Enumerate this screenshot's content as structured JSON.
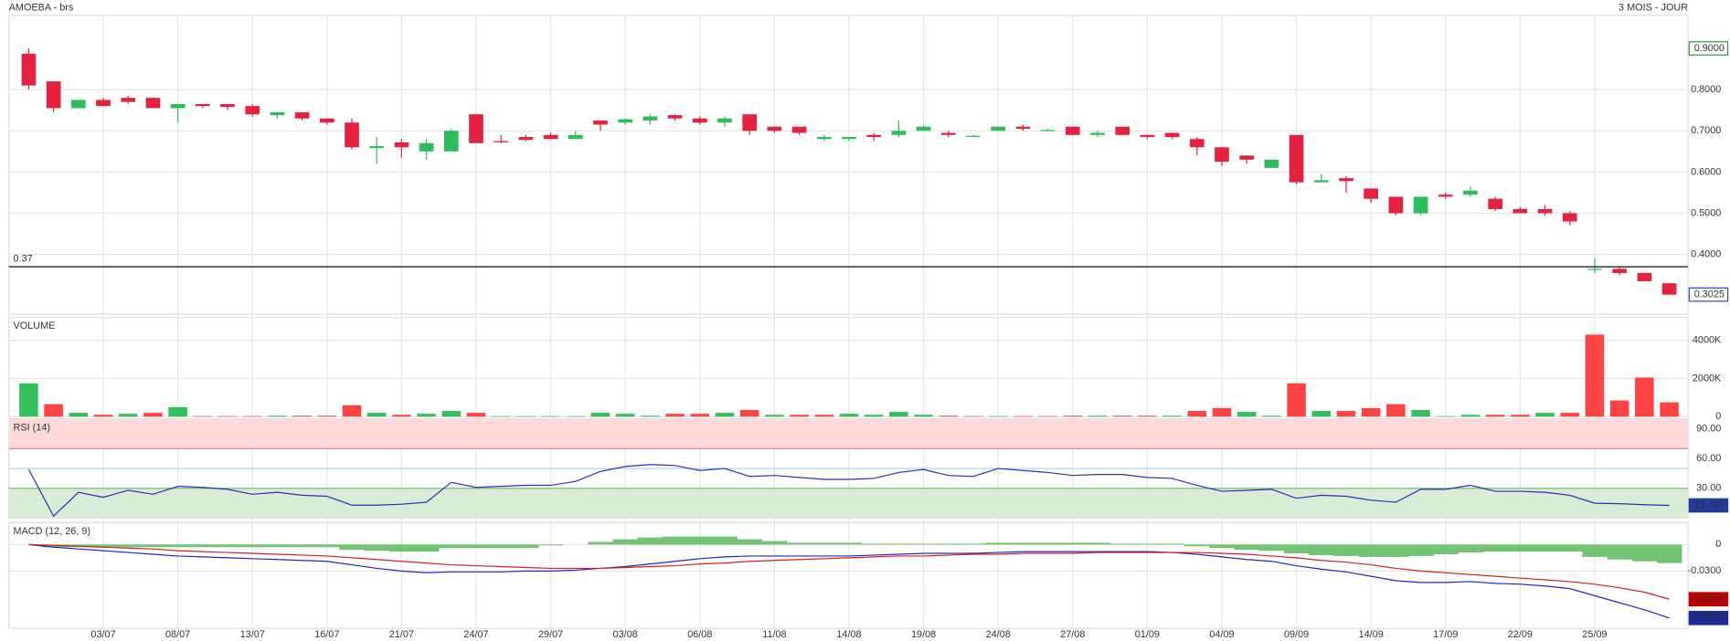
{
  "chart_data": [
    {
      "type": "candlestick",
      "title": "AMOEBA - brs",
      "subtitle": "3 MOIS - JOUR",
      "categories": [
        null,
        null,
        null,
        "03/07",
        null,
        null,
        "08/07",
        null,
        null,
        "13/07",
        null,
        null,
        "16/07",
        null,
        null,
        "21/07",
        null,
        null,
        "24/07",
        null,
        null,
        "29/07",
        null,
        null,
        "03/08",
        null,
        null,
        "06/08",
        null,
        null,
        "11/08",
        null,
        null,
        "14/08",
        null,
        null,
        "19/08",
        null,
        null,
        "24/08",
        null,
        null,
        "27/08",
        null,
        null,
        "01/09",
        null,
        null,
        "04/09",
        null,
        null,
        "09/09",
        null,
        null,
        "14/09",
        null,
        null,
        "17/09",
        null,
        null,
        "22/09",
        null,
        null,
        "25/09",
        null,
        null,
        null
      ],
      "open": [
        0.887,
        0.82,
        0.755,
        0.775,
        0.78,
        0.78,
        0.755,
        0.765,
        0.765,
        0.76,
        0.738,
        0.745,
        0.73,
        0.72,
        0.658,
        0.672,
        0.65,
        0.65,
        0.74,
        0.675,
        0.685,
        0.69,
        0.68,
        0.725,
        0.72,
        0.725,
        0.738,
        0.73,
        0.72,
        0.74,
        0.71,
        0.71,
        0.68,
        0.68,
        0.69,
        0.69,
        0.7,
        0.695,
        0.686,
        0.7,
        0.71,
        0.7,
        0.71,
        0.69,
        0.71,
        0.69,
        0.695,
        0.68,
        0.66,
        0.64,
        0.61,
        0.69,
        0.575,
        0.585,
        0.56,
        0.54,
        0.5,
        0.545,
        0.545,
        0.535,
        0.51,
        0.51,
        0.5,
        0.363,
        0.365,
        0.355,
        0.33
      ],
      "high": [
        0.9,
        0.82,
        0.775,
        0.78,
        0.785,
        0.78,
        0.765,
        0.765,
        0.765,
        0.765,
        0.745,
        0.745,
        0.73,
        0.73,
        0.685,
        0.68,
        0.68,
        0.705,
        0.74,
        0.69,
        0.69,
        0.695,
        0.7,
        0.725,
        0.73,
        0.74,
        0.74,
        0.735,
        0.735,
        0.74,
        0.71,
        0.71,
        0.69,
        0.685,
        0.695,
        0.725,
        0.715,
        0.7,
        0.69,
        0.71,
        0.715,
        0.705,
        0.71,
        0.7,
        0.71,
        0.69,
        0.695,
        0.685,
        0.66,
        0.64,
        0.63,
        0.69,
        0.595,
        0.59,
        0.56,
        0.54,
        0.54,
        0.55,
        0.565,
        0.54,
        0.515,
        0.52,
        0.505,
        0.39,
        0.37,
        0.355,
        0.33
      ],
      "low": [
        0.8,
        0.745,
        0.755,
        0.76,
        0.765,
        0.755,
        0.72,
        0.755,
        0.75,
        0.735,
        0.73,
        0.725,
        0.715,
        0.655,
        0.62,
        0.635,
        0.63,
        0.65,
        0.67,
        0.67,
        0.675,
        0.68,
        0.68,
        0.7,
        0.715,
        0.715,
        0.725,
        0.715,
        0.71,
        0.69,
        0.695,
        0.69,
        0.675,
        0.675,
        0.675,
        0.685,
        0.7,
        0.685,
        0.685,
        0.7,
        0.7,
        0.7,
        0.69,
        0.685,
        0.69,
        0.68,
        0.68,
        0.64,
        0.615,
        0.62,
        0.61,
        0.57,
        0.575,
        0.55,
        0.525,
        0.495,
        0.495,
        0.535,
        0.54,
        0.505,
        0.5,
        0.495,
        0.47,
        0.355,
        0.35,
        0.335,
        0.3025
      ],
      "close": [
        0.81,
        0.755,
        0.775,
        0.76,
        0.77,
        0.755,
        0.765,
        0.76,
        0.758,
        0.74,
        0.745,
        0.73,
        0.72,
        0.66,
        0.663,
        0.66,
        0.67,
        0.7,
        0.67,
        0.672,
        0.678,
        0.68,
        0.69,
        0.715,
        0.728,
        0.735,
        0.73,
        0.72,
        0.73,
        0.7,
        0.7,
        0.695,
        0.685,
        0.685,
        0.685,
        0.7,
        0.71,
        0.69,
        0.688,
        0.71,
        0.705,
        0.702,
        0.69,
        0.695,
        0.69,
        0.685,
        0.685,
        0.66,
        0.625,
        0.63,
        0.63,
        0.575,
        0.58,
        0.578,
        0.535,
        0.5,
        0.54,
        0.54,
        0.555,
        0.51,
        0.5,
        0.5,
        0.48,
        0.365,
        0.355,
        0.335,
        0.3025
      ],
      "up_color": "#2dbd5a",
      "down_color": "#e4213f",
      "ylim": [
        0.255,
        0.98
      ],
      "yticks": [
        {
          "value": 0.8,
          "label": "0.8000"
        },
        {
          "value": 0.7,
          "label": "0.7000"
        },
        {
          "value": 0.6,
          "label": "0.6000"
        },
        {
          "value": 0.5,
          "label": "0.5000"
        },
        {
          "value": 0.4,
          "label": "0.4000"
        }
      ],
      "high_marker": {
        "value": 0.9,
        "label": "0.9000"
      },
      "hline": 0.37,
      "grid": true
    },
    {
      "type": "bar",
      "title": "VOLUME",
      "values": [
        1750,
        650,
        200,
        100,
        150,
        200,
        500,
        30,
        30,
        30,
        50,
        50,
        50,
        600,
        200,
        100,
        150,
        300,
        200,
        30,
        30,
        30,
        30,
        200,
        150,
        50,
        150,
        150,
        200,
        350,
        100,
        100,
        100,
        150,
        100,
        250,
        100,
        50,
        30,
        30,
        30,
        30,
        50,
        50,
        50,
        50,
        50,
        300,
        450,
        250,
        50,
        1750,
        300,
        300,
        450,
        650,
        350,
        30,
        100,
        100,
        100,
        200,
        200,
        4300,
        850,
        2050,
        750
      ],
      "up_color": "#34c05c",
      "down_color": "#ff4343",
      "ylim": [
        0,
        5200
      ],
      "yticks": [
        {
          "value": 4000,
          "label": "4000K"
        },
        {
          "value": 2000,
          "label": "2000K"
        },
        0
      ],
      "grid": true
    },
    {
      "type": "line",
      "title": "RSI (14)",
      "values": [
        49,
        2,
        26,
        21,
        28,
        24,
        32,
        31,
        29,
        24,
        26,
        23,
        22,
        13,
        13,
        14,
        16,
        36,
        31,
        32,
        33,
        33,
        37,
        47,
        52,
        54,
        53,
        48,
        50,
        42,
        43,
        41,
        39,
        39,
        40,
        46,
        49,
        43,
        42,
        50,
        48,
        46,
        43,
        44,
        44,
        41,
        40,
        33,
        27,
        28,
        29,
        20,
        23,
        22,
        18,
        16,
        29,
        29,
        33,
        27,
        27,
        26,
        23,
        15,
        14.5,
        13.5,
        12.787
      ],
      "color": "#2b2fb5",
      "ylim": [
        0,
        100
      ],
      "yticks": [
        {
          "value": 90,
          "label": "90.00"
        },
        {
          "value": 60,
          "label": "60.00"
        },
        {
          "value": 30,
          "label": "30.00"
        }
      ],
      "overbought": 70,
      "oversold": 30,
      "midline": 50
    },
    {
      "type": "macd",
      "title": "MACD (12, 26, 9)",
      "series": [
        {
          "color": "#2424c8",
          "values": [
            0,
            -0.003,
            -0.005,
            -0.007,
            -0.009,
            -0.011,
            -0.013,
            -0.014,
            -0.015,
            -0.016,
            -0.017,
            -0.018,
            -0.019,
            -0.023,
            -0.027,
            -0.03,
            -0.032,
            -0.031,
            -0.031,
            -0.031,
            -0.03,
            -0.03,
            -0.029,
            -0.027,
            -0.025,
            -0.022,
            -0.019,
            -0.016,
            -0.014,
            -0.013,
            -0.013,
            -0.013,
            -0.013,
            -0.013,
            -0.012,
            -0.011,
            -0.01,
            -0.01,
            -0.01,
            -0.009,
            -0.008,
            -0.008,
            -0.008,
            -0.008,
            -0.008,
            -0.008,
            -0.009,
            -0.011,
            -0.014,
            -0.017,
            -0.019,
            -0.024,
            -0.028,
            -0.031,
            -0.036,
            -0.041,
            -0.043,
            -0.043,
            -0.042,
            -0.044,
            -0.045,
            -0.047,
            -0.05,
            -0.058,
            -0.066,
            -0.074,
            -0.0833
          ]
        },
        {
          "color": "#d42020",
          "values": [
            0,
            -0.001,
            -0.002,
            -0.003,
            -0.004,
            -0.005,
            -0.007,
            -0.008,
            -0.009,
            -0.01,
            -0.011,
            -0.012,
            -0.013,
            -0.015,
            -0.017,
            -0.019,
            -0.021,
            -0.023,
            -0.024,
            -0.025,
            -0.026,
            -0.027,
            -0.027,
            -0.027,
            -0.026,
            -0.025,
            -0.024,
            -0.022,
            -0.021,
            -0.019,
            -0.018,
            -0.017,
            -0.016,
            -0.015,
            -0.014,
            -0.013,
            -0.013,
            -0.012,
            -0.011,
            -0.011,
            -0.01,
            -0.01,
            -0.01,
            -0.009,
            -0.009,
            -0.009,
            -0.009,
            -0.009,
            -0.01,
            -0.011,
            -0.013,
            -0.015,
            -0.018,
            -0.02,
            -0.023,
            -0.027,
            -0.03,
            -0.032,
            -0.034,
            -0.036,
            -0.038,
            -0.04,
            -0.042,
            -0.045,
            -0.049,
            -0.054,
            -0.062
          ],
          "last_label": {
            "value": -0.062,
            "label": "-0.0620"
          }
        }
      ],
      "histogram": [
        0,
        -0.003,
        -0.003,
        -0.003,
        -0.003,
        -0.003,
        -0.003,
        -0.003,
        -0.003,
        -0.003,
        -0.003,
        -0.003,
        -0.003,
        -0.006,
        -0.007,
        -0.008,
        -0.008,
        -0.004,
        -0.004,
        -0.004,
        -0.004,
        -0.001,
        0,
        0.003,
        0.006,
        0.008,
        0.009,
        0.009,
        0.009,
        0.006,
        0.004,
        0.002,
        0.002,
        0.002,
        0.001,
        0.001,
        0.001,
        0.001,
        0.001,
        0.002,
        0.002,
        0.002,
        0.002,
        0.002,
        0.001,
        0.001,
        0.001,
        -0.002,
        -0.004,
        -0.006,
        -0.007,
        -0.01,
        -0.012,
        -0.013,
        -0.014,
        -0.014,
        -0.013,
        -0.011,
        -0.009,
        -0.008,
        -0.008,
        -0.008,
        -0.008,
        -0.014,
        -0.017,
        -0.019,
        -0.021
      ],
      "histogram_color": "#5cb85c",
      "ylim": [
        -0.095,
        0.025
      ],
      "yticks": [
        0,
        {
          "value": -0.03,
          "label": "-0.0300"
        }
      ],
      "grid": true
    }
  ]
}
